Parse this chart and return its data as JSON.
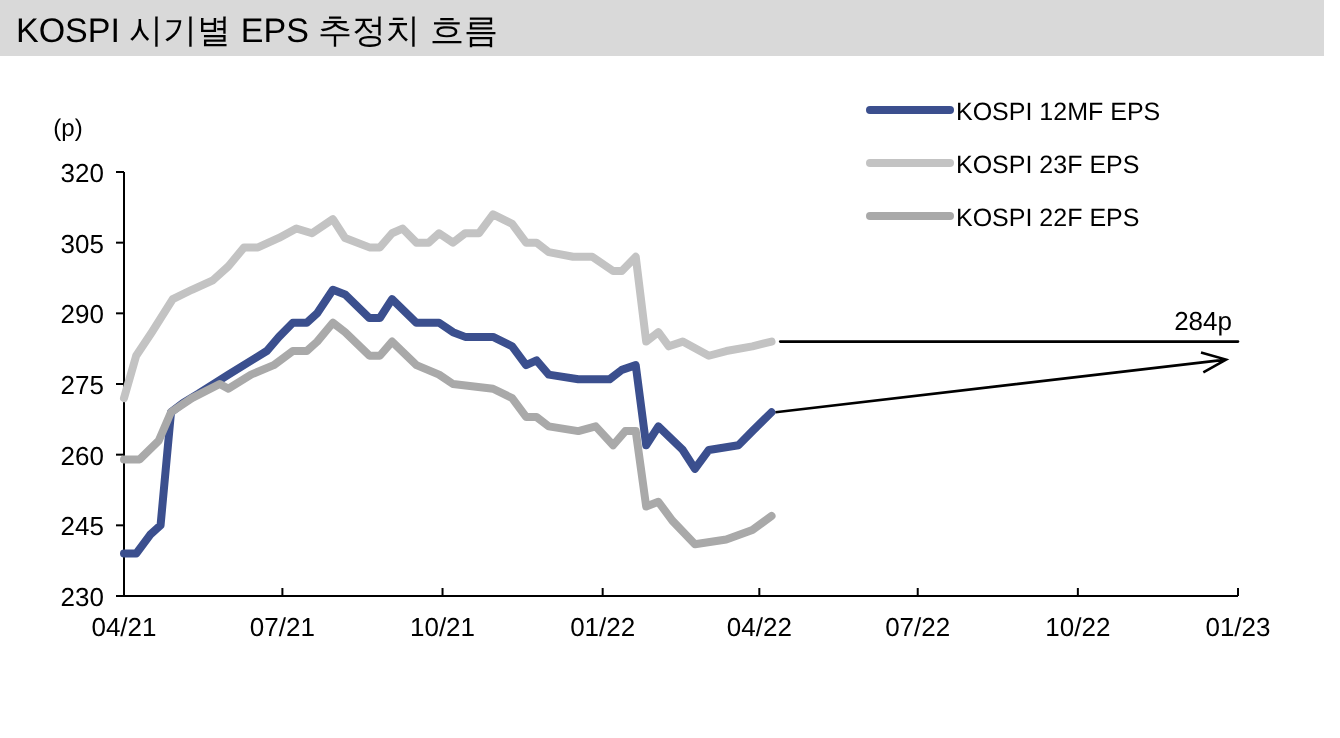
{
  "chart_data": {
    "type": "line",
    "title": "KOSPI 시기별 EPS 추정치 흐름",
    "ylabel": "(p)",
    "xlim": [
      "2021-04-01",
      "2023-01-01"
    ],
    "xticks": [
      {
        "value": "2021-04-01",
        "label": "04/21"
      },
      {
        "value": "2021-07-01",
        "label": "07/21"
      },
      {
        "value": "2021-10-01",
        "label": "10/21"
      },
      {
        "value": "2022-01-01",
        "label": "01/22"
      },
      {
        "value": "2022-04-01",
        "label": "04/22"
      },
      {
        "value": "2022-07-01",
        "label": "07/22"
      },
      {
        "value": "2022-10-01",
        "label": "10/22"
      },
      {
        "value": "2023-01-01",
        "label": "01/23"
      }
    ],
    "ylim": [
      230,
      320
    ],
    "yticks": [
      230,
      245,
      260,
      275,
      290,
      305,
      320
    ],
    "grid": false,
    "legend": "top right",
    "series": [
      {
        "name": "KOSPI 12MF EPS",
        "color": "#3b4f8e",
        "x": [
          "2021-04-01",
          "2021-04-08",
          "2021-04-16",
          "2021-04-22",
          "2021-04-28",
          "2021-05-05",
          "2021-05-14",
          "2021-05-31",
          "2021-06-22",
          "2021-06-29",
          "2021-07-07",
          "2021-07-15",
          "2021-07-21",
          "2021-07-30",
          "2021-08-06",
          "2021-08-20",
          "2021-08-26",
          "2021-09-02",
          "2021-09-16",
          "2021-09-29",
          "2021-10-07",
          "2021-10-14",
          "2021-10-30",
          "2021-11-10",
          "2021-11-18",
          "2021-11-24",
          "2021-12-01",
          "2021-12-18",
          "2022-01-05",
          "2022-01-12",
          "2022-01-20",
          "2022-01-26",
          "2022-02-02",
          "2022-02-16",
          "2022-02-23",
          "2022-03-03",
          "2022-03-20",
          "2022-03-28",
          "2022-04-08"
        ],
        "values": [
          239,
          239,
          243,
          245,
          269,
          271,
          273,
          277,
          282,
          285,
          288,
          288,
          290,
          295,
          294,
          289,
          289,
          293,
          288,
          288,
          286,
          285,
          285,
          283,
          279,
          280,
          277,
          276,
          276,
          278,
          279,
          262,
          266,
          261,
          257,
          261,
          262,
          265,
          269
        ]
      },
      {
        "name": "KOSPI 23F EPS",
        "color": "#c3c3c3",
        "x": [
          "2021-04-01",
          "2021-04-08",
          "2021-04-17",
          "2021-04-29",
          "2021-05-10",
          "2021-05-22",
          "2021-05-31",
          "2021-06-09",
          "2021-06-17",
          "2021-06-29",
          "2021-07-09",
          "2021-07-18",
          "2021-07-30",
          "2021-08-06",
          "2021-08-20",
          "2021-08-26",
          "2021-09-02",
          "2021-09-08",
          "2021-09-16",
          "2021-09-23",
          "2021-09-29",
          "2021-10-07",
          "2021-10-14",
          "2021-10-22",
          "2021-10-30",
          "2021-11-10",
          "2021-11-18",
          "2021-11-24",
          "2021-12-01",
          "2021-12-15",
          "2021-12-26",
          "2022-01-07",
          "2022-01-12",
          "2022-01-20",
          "2022-01-26",
          "2022-02-02",
          "2022-02-08",
          "2022-02-16",
          "2022-03-03",
          "2022-03-13",
          "2022-03-28",
          "2022-04-08"
        ],
        "values": [
          272,
          281,
          286,
          293,
          295,
          297,
          300,
          304,
          304,
          306,
          308,
          307,
          310,
          306,
          304,
          304,
          307,
          308,
          305,
          305,
          307,
          305,
          307,
          307,
          311,
          309,
          305,
          305,
          303,
          302,
          302,
          299,
          299,
          302,
          284,
          286,
          283,
          284,
          281,
          282,
          283,
          284
        ]
      },
      {
        "name": "KOSPI 22F EPS",
        "color": "#a9a9a9",
        "x": [
          "2021-04-01",
          "2021-04-10",
          "2021-04-21",
          "2021-04-28",
          "2021-05-10",
          "2021-05-26",
          "2021-05-31",
          "2021-06-13",
          "2021-06-26",
          "2021-07-07",
          "2021-07-15",
          "2021-07-21",
          "2021-07-30",
          "2021-08-06",
          "2021-08-20",
          "2021-08-26",
          "2021-09-02",
          "2021-09-16",
          "2021-09-29",
          "2021-10-07",
          "2021-10-30",
          "2021-11-10",
          "2021-11-18",
          "2021-11-24",
          "2021-12-01",
          "2021-12-18",
          "2021-12-28",
          "2022-01-07",
          "2022-01-14",
          "2022-01-20",
          "2022-01-26",
          "2022-02-02",
          "2022-02-10",
          "2022-02-23",
          "2022-03-13",
          "2022-03-28",
          "2022-04-08"
        ],
        "values": [
          259,
          259,
          263,
          269,
          272,
          275,
          274,
          277,
          279,
          282,
          282,
          284,
          288,
          286,
          281,
          281,
          284,
          279,
          277,
          275,
          274,
          272,
          268,
          268,
          266,
          265,
          266,
          262,
          265,
          265,
          249,
          250,
          246,
          241,
          242,
          244,
          247
        ]
      },
      {
        "color": "#000000",
        "x": [
          "2022-04-13",
          "2023-01-01"
        ],
        "values": [
          284,
          284
        ]
      }
    ],
    "annotations": [
      {
        "text": "284p",
        "x": "2023-01-01",
        "y": 284
      }
    ]
  }
}
